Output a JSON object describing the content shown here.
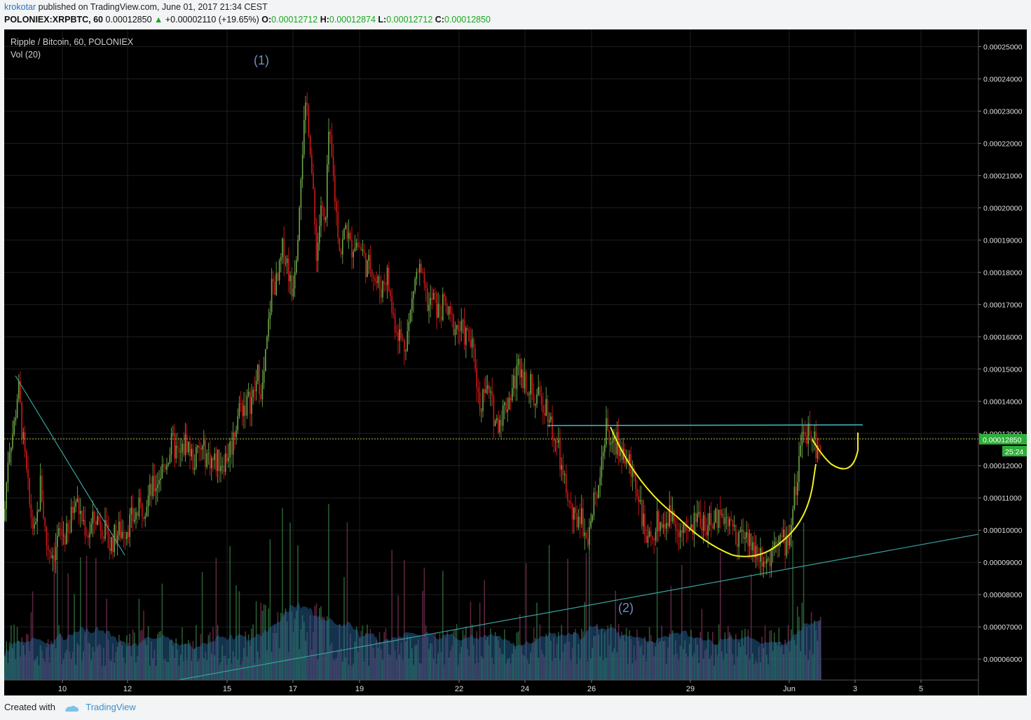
{
  "header": {
    "user": "krokotar",
    "published_text": "published on TradingView.com, June 01, 2017 21:34 CEST",
    "symbol": "POLONIEX:XRPBTC, 60",
    "last": "0.00012850",
    "change_arrow": "▲",
    "change": "+0.00002110 (+19.65%)",
    "o_label": "O:",
    "o_value": "0.00012712",
    "h_label": "H:",
    "h_value": "0.00012874",
    "l_label": "L:",
    "l_value": "0.00012712",
    "c_label": "C:",
    "c_value": "0.00012850"
  },
  "chart_labels": {
    "title": "Ripple / Bitcoin, 60, POLONIEX",
    "volume_label": "Vol (20)",
    "wave1": "(1)",
    "wave2": "(2)",
    "price_tag": "0.00012850",
    "countdown": "25:24"
  },
  "footer": {
    "created_with": "Created with",
    "brand": "TradingView"
  },
  "colors": {
    "background": "#000000",
    "up_candle": "#6fa84a",
    "down_candle": "#d01818",
    "trendline": "#35a49c",
    "resistance": "#3fbfc6",
    "cup_handle": "#f2ef1e",
    "price_tag": "#2fae3a",
    "wave_label": "#6d8fc0"
  },
  "chart_data": {
    "type": "candlestick",
    "symbol": "XRPBTC",
    "timeframe": "60",
    "ylim": [
      5.4e-05,
      0.0002565
    ],
    "y_ticks": [
      "0.00025000",
      "0.00024000",
      "0.00023000",
      "0.00022000",
      "0.00021000",
      "0.00020000",
      "0.00019000",
      "0.00018000",
      "0.00017000",
      "0.00016000",
      "0.00015000",
      "0.00014000",
      "0.00013000",
      "0.00012000",
      "0.00011000",
      "0.00010000",
      "0.00009000",
      "0.00008000",
      "0.00007000",
      "0.00006000"
    ],
    "x_ticks": [
      "10",
      "12",
      "15",
      "17",
      "19",
      "22",
      "24",
      "26",
      "29",
      "Jun",
      "3",
      "5"
    ],
    "last_price": 0.0001285,
    "price_path": [
      [
        0,
        0.000103
      ],
      [
        6,
        0.000125
      ],
      [
        14,
        0.000132
      ],
      [
        20,
        0.000145
      ],
      [
        28,
        0.000125
      ],
      [
        36,
        0.000108
      ],
      [
        44,
        9.7e-05
      ],
      [
        52,
        0.000115
      ],
      [
        60,
        9.6e-05
      ],
      [
        70,
        9.3e-05
      ],
      [
        80,
        9.9e-05
      ],
      [
        92,
        9.8e-05
      ],
      [
        100,
        0.000111
      ],
      [
        110,
        0.000104
      ],
      [
        120,
        9.9e-05
      ],
      [
        130,
        0.000104
      ],
      [
        140,
        0.000102
      ],
      [
        150,
        9.5e-05
      ],
      [
        160,
        9.9e-05
      ],
      [
        170,
        0.0001
      ],
      [
        185,
        0.000104
      ],
      [
        200,
        0.000108
      ],
      [
        215,
        0.000114
      ],
      [
        230,
        0.000121
      ],
      [
        240,
        0.000127
      ],
      [
        250,
        0.000122
      ],
      [
        260,
        0.000128
      ],
      [
        270,
        0.000121
      ],
      [
        280,
        0.000125
      ],
      [
        300,
        0.000121
      ],
      [
        315,
        0.000122
      ],
      [
        325,
        0.000127
      ],
      [
        335,
        0.000138
      ],
      [
        345,
        0.000139
      ],
      [
        355,
        0.000141
      ],
      [
        362,
        0.000148
      ],
      [
        368,
        0.000143
      ],
      [
        376,
        0.00016
      ],
      [
        382,
        0.000177
      ],
      [
        390,
        0.000176
      ],
      [
        398,
        0.000188
      ],
      [
        405,
        0.000182
      ],
      [
        410,
        0.000173
      ],
      [
        418,
        0.00019
      ],
      [
        424,
        0.000215
      ],
      [
        428,
        0.000225
      ],
      [
        432,
        0.000232
      ],
      [
        436,
        0.000222
      ],
      [
        442,
        0.000198
      ],
      [
        446,
        0.000185
      ],
      [
        452,
        0.000201
      ],
      [
        458,
        0.000192
      ],
      [
        463,
        0.000223
      ],
      [
        468,
        0.000213
      ],
      [
        474,
        0.000198
      ],
      [
        480,
        0.000186
      ],
      [
        488,
        0.000195
      ],
      [
        494,
        0.000187
      ],
      [
        500,
        0.00019
      ],
      [
        510,
        0.000187
      ],
      [
        518,
        0.000181
      ],
      [
        524,
        0.000183
      ],
      [
        530,
        0.000177
      ],
      [
        538,
        0.000175
      ],
      [
        546,
        0.00018
      ],
      [
        554,
        0.000167
      ],
      [
        562,
        0.000162
      ],
      [
        570,
        0.000157
      ],
      [
        578,
        0.000164
      ],
      [
        585,
        0.000177
      ],
      [
        592,
        0.000181
      ],
      [
        598,
        0.000175
      ],
      [
        606,
        0.000169
      ],
      [
        612,
        0.000172
      ],
      [
        620,
        0.000167
      ],
      [
        628,
        0.00017
      ],
      [
        636,
        0.000165
      ],
      [
        646,
        0.000163
      ],
      [
        656,
        0.000161
      ],
      [
        664,
        0.000159
      ],
      [
        672,
        0.000152
      ],
      [
        678,
        0.000138
      ],
      [
        686,
        0.000145
      ],
      [
        694,
        0.00014
      ],
      [
        702,
        0.000133
      ],
      [
        712,
        0.000137
      ],
      [
        720,
        0.000141
      ],
      [
        728,
        0.000146
      ],
      [
        735,
        0.000152
      ],
      [
        742,
        0.000147
      ],
      [
        750,
        0.000145
      ],
      [
        758,
        0.00014
      ],
      [
        766,
        0.000141
      ],
      [
        774,
        0.000139
      ],
      [
        782,
        0.000131
      ],
      [
        790,
        0.000125
      ],
      [
        798,
        0.000115
      ],
      [
        806,
        0.000108
      ],
      [
        814,
        0.000102
      ],
      [
        822,
        0.000106
      ],
      [
        830,
        9.8e-05
      ],
      [
        838,
        0.000103
      ],
      [
        846,
        0.000114
      ],
      [
        854,
        0.000125
      ],
      [
        860,
        0.000132
      ],
      [
        868,
        0.000125
      ],
      [
        876,
        0.000127
      ],
      [
        884,
        0.000123
      ],
      [
        892,
        0.00012
      ],
      [
        900,
        0.000116
      ],
      [
        906,
        0.000111
      ],
      [
        912,
        0.000101
      ],
      [
        918,
        9.4e-05
      ],
      [
        926,
        0.0001
      ],
      [
        934,
        0.000103
      ],
      [
        942,
        0.000102
      ],
      [
        950,
        0.000105
      ],
      [
        958,
        0.000103
      ],
      [
        966,
        0.0001
      ],
      [
        974,
        9.8e-05
      ],
      [
        982,
        0.000101
      ],
      [
        990,
        0.000104
      ],
      [
        998,
        0.000103
      ],
      [
        1006,
        0.000101
      ],
      [
        1014,
        0.000103
      ],
      [
        1022,
        0.000106
      ],
      [
        1030,
        0.000104
      ],
      [
        1038,
        0.000101
      ],
      [
        1046,
        9.9e-05
      ],
      [
        1054,
        9.8e-05
      ],
      [
        1062,
        9.6e-05
      ],
      [
        1070,
        9.4e-05
      ],
      [
        1078,
        9.3e-05
      ],
      [
        1086,
        9.2e-05
      ],
      [
        1092,
        9e-05
      ],
      [
        1098,
        0.0001
      ],
      [
        1106,
        9.7e-05
      ],
      [
        1114,
        9.6e-05
      ],
      [
        1120,
        9.8e-05
      ],
      [
        1126,
        0.000108
      ],
      [
        1132,
        0.000117
      ],
      [
        1138,
        0.000126
      ],
      [
        1144,
        0.00013
      ],
      [
        1148,
        0.000133
      ],
      [
        1154,
        0.00013
      ],
      [
        1160,
        0.000124
      ],
      [
        1166,
        0.000128
      ]
    ],
    "annotations": {
      "resistance_price": 0.0001331,
      "wave_labels": [
        "(1)",
        "(2)"
      ]
    }
  }
}
